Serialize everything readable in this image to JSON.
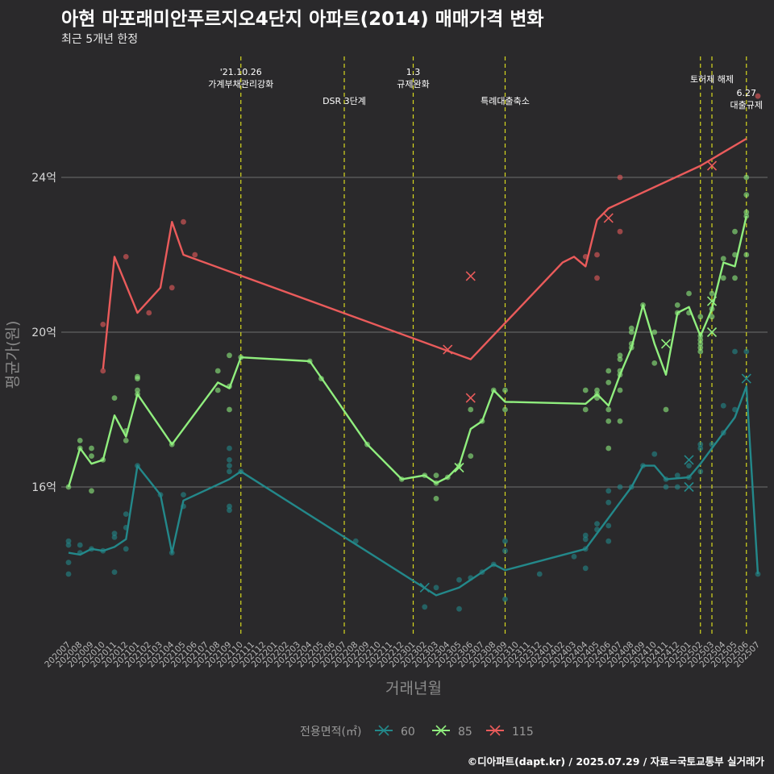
{
  "title": "아현 마포래미안푸르지오4단지 아파트(2014) 매매가격 변화",
  "subtitle": "최근 5개년 한정",
  "caption": "©디아파트(dapt.kr) / 2025.07.29 / 자료=국토교통부 실거래가",
  "chart_data": {
    "type": "line",
    "xlabel": "거래년월",
    "ylabel": "평균가(원)",
    "ylim": [
      12.0,
      27.5
    ],
    "yticks": [
      {
        "value": 16,
        "label": "16억"
      },
      {
        "value": 20,
        "label": "20억"
      },
      {
        "value": 24,
        "label": "24억"
      }
    ],
    "categories": [
      "202007",
      "202008",
      "202009",
      "202010",
      "202011",
      "202012",
      "202101",
      "202102",
      "202103",
      "202104",
      "202105",
      "202106",
      "202107",
      "202108",
      "202109",
      "202110",
      "202111",
      "202112",
      "202201",
      "202202",
      "202203",
      "202204",
      "202205",
      "202206",
      "202207",
      "202208",
      "202209",
      "202210",
      "202211",
      "202212",
      "202301",
      "202302",
      "202303",
      "202304",
      "202305",
      "202306",
      "202307",
      "202308",
      "202309",
      "202310",
      "202311",
      "202312",
      "202401",
      "202402",
      "202403",
      "202404",
      "202405",
      "202406",
      "202407",
      "202408",
      "202409",
      "202410",
      "202411",
      "202412",
      "202501",
      "202502",
      "202503",
      "202504",
      "202505",
      "202506",
      "202507"
    ],
    "legend": {
      "title": "전용면적(㎡)",
      "entries": [
        "60",
        "85",
        "115"
      ]
    },
    "series": [
      {
        "name": "60",
        "color": "#23888a",
        "line": [
          [
            "202007",
            14.3
          ],
          [
            "202008",
            14.25
          ],
          [
            "202009",
            14.4
          ],
          [
            "202010",
            14.35
          ],
          [
            "202011",
            14.45
          ],
          [
            "202012",
            14.65
          ],
          [
            "202101",
            16.55
          ],
          [
            "202103",
            15.8
          ],
          [
            "202104",
            14.3
          ],
          [
            "202105",
            15.65
          ],
          [
            "202109",
            16.2
          ],
          [
            "202110",
            16.4
          ],
          [
            "202303",
            13.2
          ],
          [
            "202305",
            13.4
          ],
          [
            "202307",
            13.8
          ],
          [
            "202308",
            14.0
          ],
          [
            "202309",
            13.85
          ],
          [
            "202404",
            14.4
          ],
          [
            "202405",
            14.8
          ],
          [
            "202406",
            15.2
          ],
          [
            "202407",
            15.6
          ],
          [
            "202408",
            16.0
          ],
          [
            "202409",
            16.55
          ],
          [
            "202410",
            16.55
          ],
          [
            "202411",
            16.2
          ],
          [
            "202501",
            16.25
          ],
          [
            "202502",
            16.6
          ],
          [
            "202503",
            17.0
          ],
          [
            "202504",
            17.4
          ],
          [
            "202505",
            17.8
          ],
          [
            "202506",
            18.6
          ],
          [
            "202507",
            13.75
          ]
        ],
        "points": [
          [
            "202007",
            13.75
          ],
          [
            "202007",
            14.05
          ],
          [
            "202007",
            14.5
          ],
          [
            "202007",
            14.6
          ],
          [
            "202008",
            14.5
          ],
          [
            "202008",
            14.3
          ],
          [
            "202009",
            14.4
          ],
          [
            "202010",
            14.35
          ],
          [
            "202011",
            14.8
          ],
          [
            "202011",
            13.8
          ],
          [
            "202011",
            14.7
          ],
          [
            "202012",
            15.3
          ],
          [
            "202012",
            14.95
          ],
          [
            "202012",
            14.4
          ],
          [
            "202101",
            16.55
          ],
          [
            "202103",
            15.8
          ],
          [
            "202104",
            14.3
          ],
          [
            "202105",
            15.8
          ],
          [
            "202105",
            15.5
          ],
          [
            "202109",
            16.55
          ],
          [
            "202109",
            16.7
          ],
          [
            "202109",
            17.0
          ],
          [
            "202109",
            15.4
          ],
          [
            "202109",
            15.5
          ],
          [
            "202109",
            16.4
          ],
          [
            "202110",
            16.4
          ],
          [
            "202208",
            14.6
          ],
          [
            "202302",
            12.9
          ],
          [
            "202303",
            13.4
          ],
          [
            "202305",
            12.85
          ],
          [
            "202305",
            13.6
          ],
          [
            "202306",
            13.65
          ],
          [
            "202307",
            13.8
          ],
          [
            "202308",
            14.0
          ],
          [
            "202309",
            14.6
          ],
          [
            "202309",
            14.35
          ],
          [
            "202309",
            13.1
          ],
          [
            "202312",
            13.75
          ],
          [
            "202403",
            14.2
          ],
          [
            "202404",
            14.65
          ],
          [
            "202404",
            14.75
          ],
          [
            "202404",
            13.9
          ],
          [
            "202404",
            14.4
          ],
          [
            "202405",
            15.05
          ],
          [
            "202405",
            14.9
          ],
          [
            "202406",
            15.6
          ],
          [
            "202406",
            14.6
          ],
          [
            "202406",
            15.0
          ],
          [
            "202406",
            15.9
          ],
          [
            "202407",
            16.0
          ],
          [
            "202408",
            16.0
          ],
          [
            "202409",
            16.55
          ],
          [
            "202410",
            16.85
          ],
          [
            "202411",
            16.0
          ],
          [
            "202411",
            16.2
          ],
          [
            "202412",
            16.3
          ],
          [
            "202412",
            16.0
          ],
          [
            "202501",
            16.55
          ],
          [
            "202501",
            16.25
          ],
          [
            "202502",
            17.0
          ],
          [
            "202502",
            16.4
          ],
          [
            "202502",
            17.1
          ],
          [
            "202503",
            17.1
          ],
          [
            "202504",
            17.4
          ],
          [
            "202504",
            18.1
          ],
          [
            "202505",
            18.0
          ],
          [
            "202505",
            19.5
          ],
          [
            "202506",
            19.5
          ],
          [
            "202507",
            13.75
          ]
        ],
        "crosses": [
          [
            "202302",
            13.4
          ],
          [
            "202501",
            16.7
          ],
          [
            "202501",
            16.0
          ],
          [
            "202506",
            18.8
          ]
        ]
      },
      {
        "name": "85",
        "color": "#90ee7e",
        "line": [
          [
            "202007",
            16.0
          ],
          [
            "202008",
            17.0
          ],
          [
            "202009",
            16.6
          ],
          [
            "202010",
            16.7
          ],
          [
            "202011",
            17.85
          ],
          [
            "202012",
            17.3
          ],
          [
            "202101",
            18.4
          ],
          [
            "202104",
            17.1
          ],
          [
            "202108",
            18.7
          ],
          [
            "202109",
            18.55
          ],
          [
            "202110",
            19.35
          ],
          [
            "202204",
            19.25
          ],
          [
            "202209",
            17.1
          ],
          [
            "202212",
            16.2
          ],
          [
            "202302",
            16.3
          ],
          [
            "202303",
            16.1
          ],
          [
            "202304",
            16.25
          ],
          [
            "202305",
            16.55
          ],
          [
            "202306",
            17.5
          ],
          [
            "202307",
            17.7
          ],
          [
            "202308",
            18.5
          ],
          [
            "202309",
            18.2
          ],
          [
            "202404",
            18.15
          ],
          [
            "202405",
            18.4
          ],
          [
            "202406",
            18.1
          ],
          [
            "202407",
            18.9
          ],
          [
            "202408",
            19.6
          ],
          [
            "202409",
            20.7
          ],
          [
            "202410",
            19.7
          ],
          [
            "202411",
            18.9
          ],
          [
            "202412",
            20.5
          ],
          [
            "202501",
            20.65
          ],
          [
            "202502",
            19.9
          ],
          [
            "202503",
            20.6
          ],
          [
            "202504",
            21.8
          ],
          [
            "202505",
            21.7
          ],
          [
            "202506",
            23.0
          ]
        ],
        "points": [
          [
            "202007",
            16.0
          ],
          [
            "202008",
            17.2
          ],
          [
            "202008",
            17.0
          ],
          [
            "202009",
            15.9
          ],
          [
            "202009",
            16.8
          ],
          [
            "202009",
            17.0
          ],
          [
            "202010",
            16.7
          ],
          [
            "202011",
            18.3
          ],
          [
            "202012",
            17.45
          ],
          [
            "202012",
            17.2
          ],
          [
            "202101",
            18.85
          ],
          [
            "202101",
            18.8
          ],
          [
            "202101",
            18.5
          ],
          [
            "202101",
            18.4
          ],
          [
            "202104",
            17.1
          ],
          [
            "202108",
            19.0
          ],
          [
            "202108",
            18.5
          ],
          [
            "202109",
            19.4
          ],
          [
            "202109",
            18.0
          ],
          [
            "202109",
            18.6
          ],
          [
            "202110",
            19.35
          ],
          [
            "202204",
            19.25
          ],
          [
            "202205",
            18.8
          ],
          [
            "202209",
            17.1
          ],
          [
            "202212",
            16.2
          ],
          [
            "202302",
            16.3
          ],
          [
            "202303",
            16.3
          ],
          [
            "202303",
            16.1
          ],
          [
            "202303",
            15.7
          ],
          [
            "202304",
            16.25
          ],
          [
            "202305",
            16.55
          ],
          [
            "202306",
            18.0
          ],
          [
            "202306",
            16.8
          ],
          [
            "202307",
            17.7
          ],
          [
            "202308",
            18.5
          ],
          [
            "202309",
            18.5
          ],
          [
            "202309",
            18.0
          ],
          [
            "202404",
            18.5
          ],
          [
            "202404",
            18.0
          ],
          [
            "202405",
            18.5
          ],
          [
            "202405",
            18.3
          ],
          [
            "202405",
            18.4
          ],
          [
            "202406",
            17.0
          ],
          [
            "202406",
            18.0
          ],
          [
            "202406",
            18.7
          ],
          [
            "202406",
            17.7
          ],
          [
            "202406",
            19.0
          ],
          [
            "202407",
            18.9
          ],
          [
            "202407",
            19.0
          ],
          [
            "202407",
            18.5
          ],
          [
            "202407",
            17.7
          ],
          [
            "202407",
            19.3
          ],
          [
            "202407",
            19.4
          ],
          [
            "202408",
            19.6
          ],
          [
            "202408",
            19.7
          ],
          [
            "202408",
            20.0
          ],
          [
            "202408",
            20.1
          ],
          [
            "202409",
            20.7
          ],
          [
            "202410",
            20.0
          ],
          [
            "202410",
            19.2
          ],
          [
            "202411",
            18.0
          ],
          [
            "202412",
            20.5
          ],
          [
            "202412",
            20.7
          ],
          [
            "202501",
            20.5
          ],
          [
            "202501",
            21.0
          ],
          [
            "202502",
            19.9
          ],
          [
            "202502",
            20.4
          ],
          [
            "202502",
            19.5
          ],
          [
            "202502",
            19.6
          ],
          [
            "202502",
            19.8
          ],
          [
            "202502",
            19.7
          ],
          [
            "202503",
            21.0
          ],
          [
            "202503",
            20.6
          ],
          [
            "202503",
            20.4
          ],
          [
            "202504",
            21.9
          ],
          [
            "202504",
            21.4
          ],
          [
            "202505",
            22.0
          ],
          [
            "202505",
            21.4
          ],
          [
            "202505",
            22.6
          ],
          [
            "202506",
            24.0
          ],
          [
            "202506",
            23.0
          ],
          [
            "202506",
            23.55
          ],
          [
            "202506",
            22.0
          ],
          [
            "202506",
            23.1
          ]
        ],
        "crosses": [
          [
            "202305",
            16.5
          ],
          [
            "202411",
            19.7
          ],
          [
            "202503",
            20.0
          ],
          [
            "202503",
            20.8
          ]
        ]
      },
      {
        "name": "115",
        "color": "#ea5b5b",
        "line": [
          [
            "202010",
            19.05
          ],
          [
            "202011",
            21.95
          ],
          [
            "202101",
            20.5
          ],
          [
            "202103",
            21.15
          ],
          [
            "202104",
            22.85
          ],
          [
            "202105",
            22.0
          ],
          [
            "202306",
            19.3
          ],
          [
            "202402",
            21.8
          ],
          [
            "202403",
            21.95
          ],
          [
            "202404",
            21.7
          ],
          [
            "202405",
            22.9
          ],
          [
            "202406",
            23.2
          ],
          [
            "202502",
            24.3
          ],
          [
            "202506",
            25.0
          ]
        ],
        "points": [
          [
            "202010",
            20.2
          ],
          [
            "202010",
            19.0
          ],
          [
            "202012",
            21.95
          ],
          [
            "202102",
            20.5
          ],
          [
            "202104",
            21.15
          ],
          [
            "202105",
            22.85
          ],
          [
            "202106",
            22.0
          ],
          [
            "202404",
            21.95
          ],
          [
            "202405",
            21.4
          ],
          [
            "202405",
            22.0
          ],
          [
            "202407",
            24.0
          ],
          [
            "202407",
            22.6
          ],
          [
            "202507",
            26.1
          ]
        ],
        "crosses": [
          [
            "202304",
            19.55
          ],
          [
            "202306",
            21.45
          ],
          [
            "202306",
            18.3
          ],
          [
            "202406",
            22.95
          ],
          [
            "202503",
            24.3
          ]
        ]
      }
    ],
    "events": [
      {
        "month": "202110",
        "lines": [
          "'21.10.26",
          "가계부채관리강화"
        ],
        "tier": "high"
      },
      {
        "month": "202207",
        "lines": [
          "DSR 3단계"
        ],
        "tier": "low"
      },
      {
        "month": "202301",
        "lines": [
          "1.3",
          "규제완화"
        ],
        "tier": "high"
      },
      {
        "month": "202309",
        "lines": [
          "특례대출축소"
        ],
        "tier": "low"
      },
      {
        "month": "202502",
        "lines": [],
        "tier": "none"
      },
      {
        "month": "202503",
        "lines": [
          "토허제 해제"
        ],
        "tier": "mid"
      },
      {
        "month": "202506",
        "lines": [
          "6.27",
          "대출규제"
        ],
        "tier": "low2"
      }
    ],
    "grid": true
  }
}
